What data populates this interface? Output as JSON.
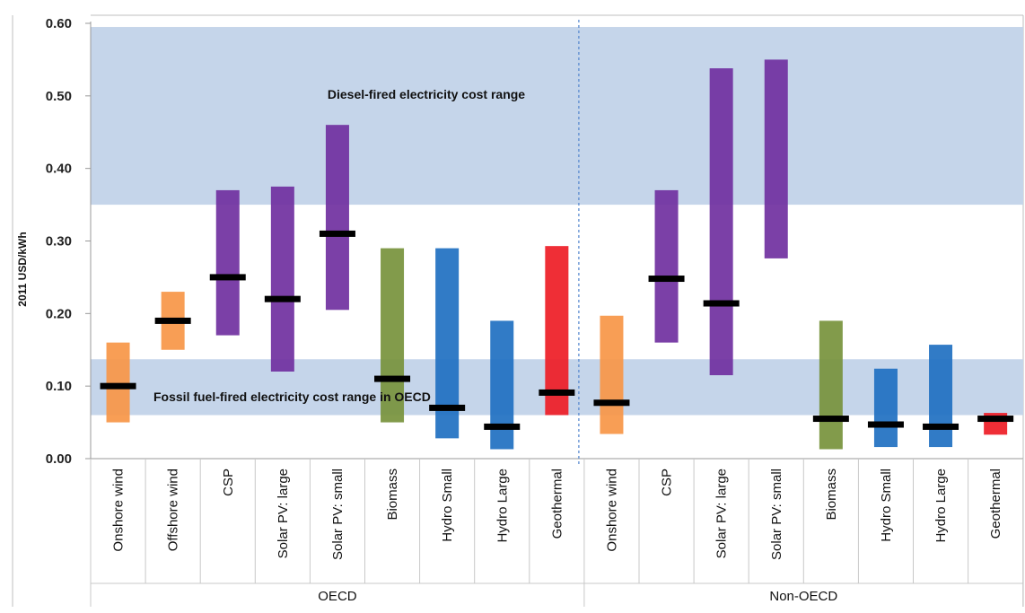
{
  "chart_data": {
    "type": "bar",
    "ylabel": "2011 USD/kWh",
    "ylim": [
      0,
      0.6
    ],
    "yticks": [
      "0.00",
      "0.10",
      "0.20",
      "0.30",
      "0.40",
      "0.50",
      "0.60"
    ],
    "grid": false,
    "groups": [
      "OECD",
      "Non-OECD"
    ],
    "bands": [
      {
        "label": "Diesel-fired electricity cost range",
        "low": 0.35,
        "high": 0.595,
        "color": "#c5d5ea"
      },
      {
        "label": "Fossil fuel-fired electricity cost range in OECD",
        "low": 0.06,
        "high": 0.137,
        "color": "#c5d5ea"
      }
    ],
    "categories": [
      {
        "group": "OECD",
        "label": "Onshore wind",
        "low": 0.05,
        "high": 0.16,
        "mid": 0.1,
        "color": "#f79646"
      },
      {
        "group": "OECD",
        "label": "Offshore wind",
        "low": 0.15,
        "high": 0.23,
        "mid": 0.19,
        "color": "#f79646"
      },
      {
        "group": "OECD",
        "label": "CSP",
        "low": 0.17,
        "high": 0.37,
        "mid": 0.25,
        "color": "#7030a0"
      },
      {
        "group": "OECD",
        "label": "Solar PV: large",
        "low": 0.12,
        "high": 0.375,
        "mid": 0.22,
        "color": "#7030a0"
      },
      {
        "group": "OECD",
        "label": "Solar PV: small",
        "low": 0.205,
        "high": 0.46,
        "mid": 0.31,
        "color": "#7030a0"
      },
      {
        "group": "OECD",
        "label": "Biomass",
        "low": 0.05,
        "high": 0.29,
        "mid": 0.11,
        "color": "#77933c"
      },
      {
        "group": "OECD",
        "label": "Hydro Small",
        "low": 0.028,
        "high": 0.29,
        "mid": 0.07,
        "color": "#1f70c1"
      },
      {
        "group": "OECD",
        "label": "Hydro Large",
        "low": 0.013,
        "high": 0.19,
        "mid": 0.044,
        "color": "#1f70c1"
      },
      {
        "group": "OECD",
        "label": "Geothermal",
        "low": 0.06,
        "high": 0.293,
        "mid": 0.091,
        "color": "#ee1c25"
      },
      {
        "group": "Non-OECD",
        "label": "Onshore wind",
        "low": 0.034,
        "high": 0.197,
        "mid": 0.077,
        "color": "#f79646"
      },
      {
        "group": "Non-OECD",
        "label": "CSP",
        "low": 0.16,
        "high": 0.37,
        "mid": 0.248,
        "color": "#7030a0"
      },
      {
        "group": "Non-OECD",
        "label": "Solar PV: large",
        "low": 0.115,
        "high": 0.538,
        "mid": 0.214,
        "color": "#7030a0"
      },
      {
        "group": "Non-OECD",
        "label": "Solar PV: small",
        "low": 0.276,
        "high": 0.55,
        "mid": null,
        "color": "#7030a0"
      },
      {
        "group": "Non-OECD",
        "label": "Biomass",
        "low": 0.013,
        "high": 0.19,
        "mid": 0.055,
        "color": "#77933c"
      },
      {
        "group": "Non-OECD",
        "label": "Hydro Small",
        "low": 0.016,
        "high": 0.124,
        "mid": 0.047,
        "color": "#1f70c1"
      },
      {
        "group": "Non-OECD",
        "label": "Hydro Large",
        "low": 0.016,
        "high": 0.157,
        "mid": 0.044,
        "color": "#1f70c1"
      },
      {
        "group": "Non-OECD",
        "label": "Geothermal",
        "low": 0.033,
        "high": 0.063,
        "mid": 0.055,
        "color": "#ee1c25"
      }
    ]
  }
}
